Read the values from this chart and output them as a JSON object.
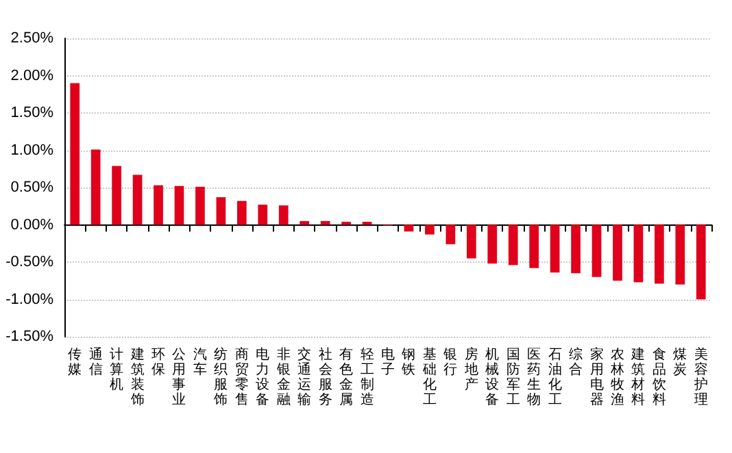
{
  "chart_data": {
    "type": "bar",
    "categories": [
      "传媒",
      "通信",
      "计算机",
      "建筑装饰",
      "环保",
      "公用事业",
      "汽车",
      "纺织服饰",
      "商贸零售",
      "电力设备",
      "非银金融",
      "交通运输",
      "社会服务",
      "有色金属",
      "轻工制造",
      "电子",
      "钢铁",
      "基础化工",
      "银行",
      "房地产",
      "机械设备",
      "国防军工",
      "医药生物",
      "石油化工",
      "综合",
      "家用电器",
      "农林牧渔",
      "建筑材料",
      "食品饮料",
      "煤炭",
      "美容护理"
    ],
    "values": [
      1.9,
      1.01,
      0.79,
      0.67,
      0.53,
      0.52,
      0.51,
      0.37,
      0.32,
      0.27,
      0.26,
      0.05,
      0.05,
      0.04,
      0.04,
      -0.01,
      -0.09,
      -0.13,
      -0.26,
      -0.45,
      -0.52,
      -0.54,
      -0.58,
      -0.64,
      -0.65,
      -0.7,
      -0.75,
      -0.77,
      -0.79,
      -0.8,
      -1.0
    ],
    "color": "#e0001b",
    "ylim": [
      -1.5,
      2.5
    ],
    "yticks": [
      {
        "value": -1.5,
        "label": "-1.50%"
      },
      {
        "value": -1.0,
        "label": "-1.00%"
      },
      {
        "value": -0.5,
        "label": "-0.50%"
      },
      {
        "value": 0,
        "label": "0.00%"
      },
      {
        "value": 0.5,
        "label": "0.50%"
      },
      {
        "value": 1.0,
        "label": "1.00%"
      },
      {
        "value": 1.5,
        "label": "1.50%"
      },
      {
        "value": 2.0,
        "label": "2.00%"
      },
      {
        "value": 2.5,
        "label": "2.50%"
      }
    ],
    "grid": "y"
  }
}
